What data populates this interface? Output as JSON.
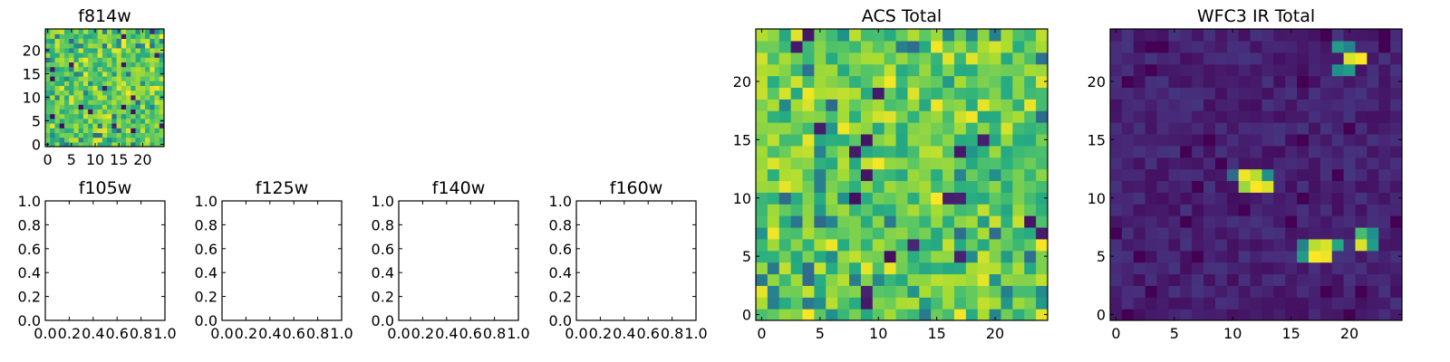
{
  "chart_data": [
    {
      "type": "heatmap",
      "title": "f814w",
      "grid_size": 25,
      "colormap": "viridis",
      "seed": 11,
      "style": "noise",
      "xticks": [
        0,
        5,
        10,
        15,
        20
      ],
      "yticks": [
        0,
        5,
        10,
        15,
        20
      ],
      "xlim": [
        -0.5,
        24.5
      ],
      "ylim": [
        -0.5,
        24.5
      ]
    },
    {
      "type": "heatmap",
      "title": "ACS Total",
      "grid_size": 25,
      "colormap": "viridis",
      "seed": 23,
      "style": "noise",
      "xticks": [
        0,
        5,
        10,
        15,
        20
      ],
      "yticks": [
        0,
        5,
        10,
        15,
        20
      ],
      "xlim": [
        -0.5,
        24.5
      ],
      "ylim": [
        -0.5,
        24.5
      ]
    },
    {
      "type": "heatmap",
      "title": "WFC3 IR Total",
      "grid_size": 25,
      "colormap": "viridis",
      "seed": 37,
      "style": "sources",
      "sources": [
        {
          "x": 20,
          "y": 22,
          "level": 0.95
        },
        {
          "x": 21,
          "y": 22,
          "level": 1.0
        },
        {
          "x": 19,
          "y": 23,
          "level": 0.55
        },
        {
          "x": 20,
          "y": 23,
          "level": 0.45
        },
        {
          "x": 19,
          "y": 21,
          "level": 0.5
        },
        {
          "x": 20,
          "y": 21,
          "level": 0.55
        },
        {
          "x": 11,
          "y": 12,
          "level": 0.98
        },
        {
          "x": 12,
          "y": 12,
          "level": 0.9
        },
        {
          "x": 11,
          "y": 11,
          "level": 0.85
        },
        {
          "x": 12,
          "y": 11,
          "level": 1.0
        },
        {
          "x": 13,
          "y": 11,
          "level": 0.95
        },
        {
          "x": 13,
          "y": 12,
          "level": 0.5
        },
        {
          "x": 10,
          "y": 12,
          "level": 0.35
        },
        {
          "x": 17,
          "y": 6,
          "level": 0.9
        },
        {
          "x": 18,
          "y": 6,
          "level": 0.95
        },
        {
          "x": 17,
          "y": 5,
          "level": 1.0
        },
        {
          "x": 18,
          "y": 5,
          "level": 0.98
        },
        {
          "x": 16,
          "y": 5,
          "level": 0.55
        },
        {
          "x": 16,
          "y": 6,
          "level": 0.45
        },
        {
          "x": 19,
          "y": 6,
          "level": 0.6
        },
        {
          "x": 21,
          "y": 6,
          "level": 0.95
        },
        {
          "x": 21,
          "y": 7,
          "level": 0.7
        },
        {
          "x": 22,
          "y": 6,
          "level": 0.55
        },
        {
          "x": 22,
          "y": 7,
          "level": 0.5
        }
      ],
      "xticks": [
        0,
        5,
        10,
        15,
        20
      ],
      "yticks": [
        0,
        5,
        10,
        15,
        20
      ],
      "xlim": [
        -0.5,
        24.5
      ],
      "ylim": [
        -0.5,
        24.5
      ]
    },
    {
      "type": "empty",
      "title": "f105w",
      "xticks": [
        "0.0",
        "0.2",
        "0.4",
        "0.6",
        "0.8",
        "1.0"
      ],
      "yticks": [
        "0.0",
        "0.2",
        "0.4",
        "0.6",
        "0.8",
        "1.0"
      ],
      "xlim": [
        0,
        1
      ],
      "ylim": [
        0,
        1
      ]
    },
    {
      "type": "empty",
      "title": "f125w",
      "xticks": [
        "0.0",
        "0.2",
        "0.4",
        "0.6",
        "0.8",
        "1.0"
      ],
      "yticks": [
        "0.0",
        "0.2",
        "0.4",
        "0.6",
        "0.8",
        "1.0"
      ],
      "xlim": [
        0,
        1
      ],
      "ylim": [
        0,
        1
      ]
    },
    {
      "type": "empty",
      "title": "f140w",
      "xticks": [
        "0.0",
        "0.2",
        "0.4",
        "0.6",
        "0.8",
        "1.0"
      ],
      "yticks": [
        "0.0",
        "0.2",
        "0.4",
        "0.6",
        "0.8",
        "1.0"
      ],
      "xlim": [
        0,
        1
      ],
      "ylim": [
        0,
        1
      ]
    },
    {
      "type": "empty",
      "title": "f160w",
      "xticks": [
        "0.0",
        "0.2",
        "0.4",
        "0.6",
        "0.8",
        "1.0"
      ],
      "yticks": [
        "0.0",
        "0.2",
        "0.4",
        "0.6",
        "0.8",
        "1.0"
      ],
      "xlim": [
        0,
        1
      ],
      "ylim": [
        0,
        1
      ]
    }
  ]
}
